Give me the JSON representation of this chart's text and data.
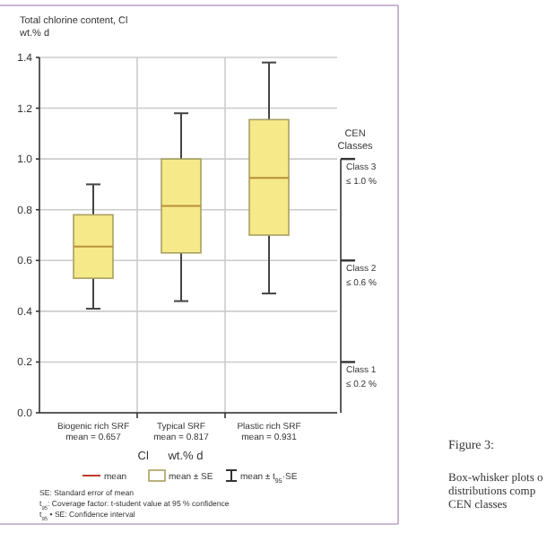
{
  "chart_data": {
    "type": "box",
    "ylabel": "Total chlorine content, Cl\nwt.% d",
    "xlabel": "Cl      wt.% d",
    "categories": [
      "Biogenic rich SRF\nmean = 0.657",
      "Typical SRF\nmean = 0.817",
      "Plastic rich SRF\nmean = 0.931"
    ],
    "boxes": [
      {
        "low": 0.41,
        "q1": 0.53,
        "median": 0.655,
        "q3": 0.78,
        "high": 0.9
      },
      {
        "low": 0.44,
        "q1": 0.63,
        "median": 0.815,
        "q3": 1.0,
        "high": 1.18
      },
      {
        "low": 0.47,
        "q1": 0.7,
        "median": 0.925,
        "q3": 1.155,
        "high": 1.38
      }
    ],
    "color": "#f6e98a",
    "ylim": [
      0,
      1.4
    ],
    "yticks": [
      {
        "value": 0,
        "label": "0.0"
      },
      0.2,
      0.4,
      0.6,
      0.8,
      {
        "value": 1,
        "label": "1.0"
      },
      1.2,
      1.4
    ],
    "grid": true,
    "ref_lines": [
      {
        "axis": "y",
        "value": 1.0,
        "label": "Class 3\n≤ 1.0 %"
      },
      {
        "axis": "y",
        "value": 0.6,
        "label": "Class 2\n≤ 0.6 %"
      },
      {
        "axis": "y",
        "value": 0.2,
        "label": "Class 1\n≤ 0.2 %"
      }
    ],
    "legend_title": "CEN\nClasses",
    "annotations": [
      "mean",
      "mean ± SE",
      "mean ± t$_{95}$·SE",
      "SE: Standard error of mean",
      "t$_{95}$: Coverage factor: t-student value at 95 % confidence",
      "t$_{95}$ • SE: Confidence interval",
      "Figure 3:",
      "Box-whisker plots o",
      "distributions comp",
      "CEN classes"
    ]
  }
}
